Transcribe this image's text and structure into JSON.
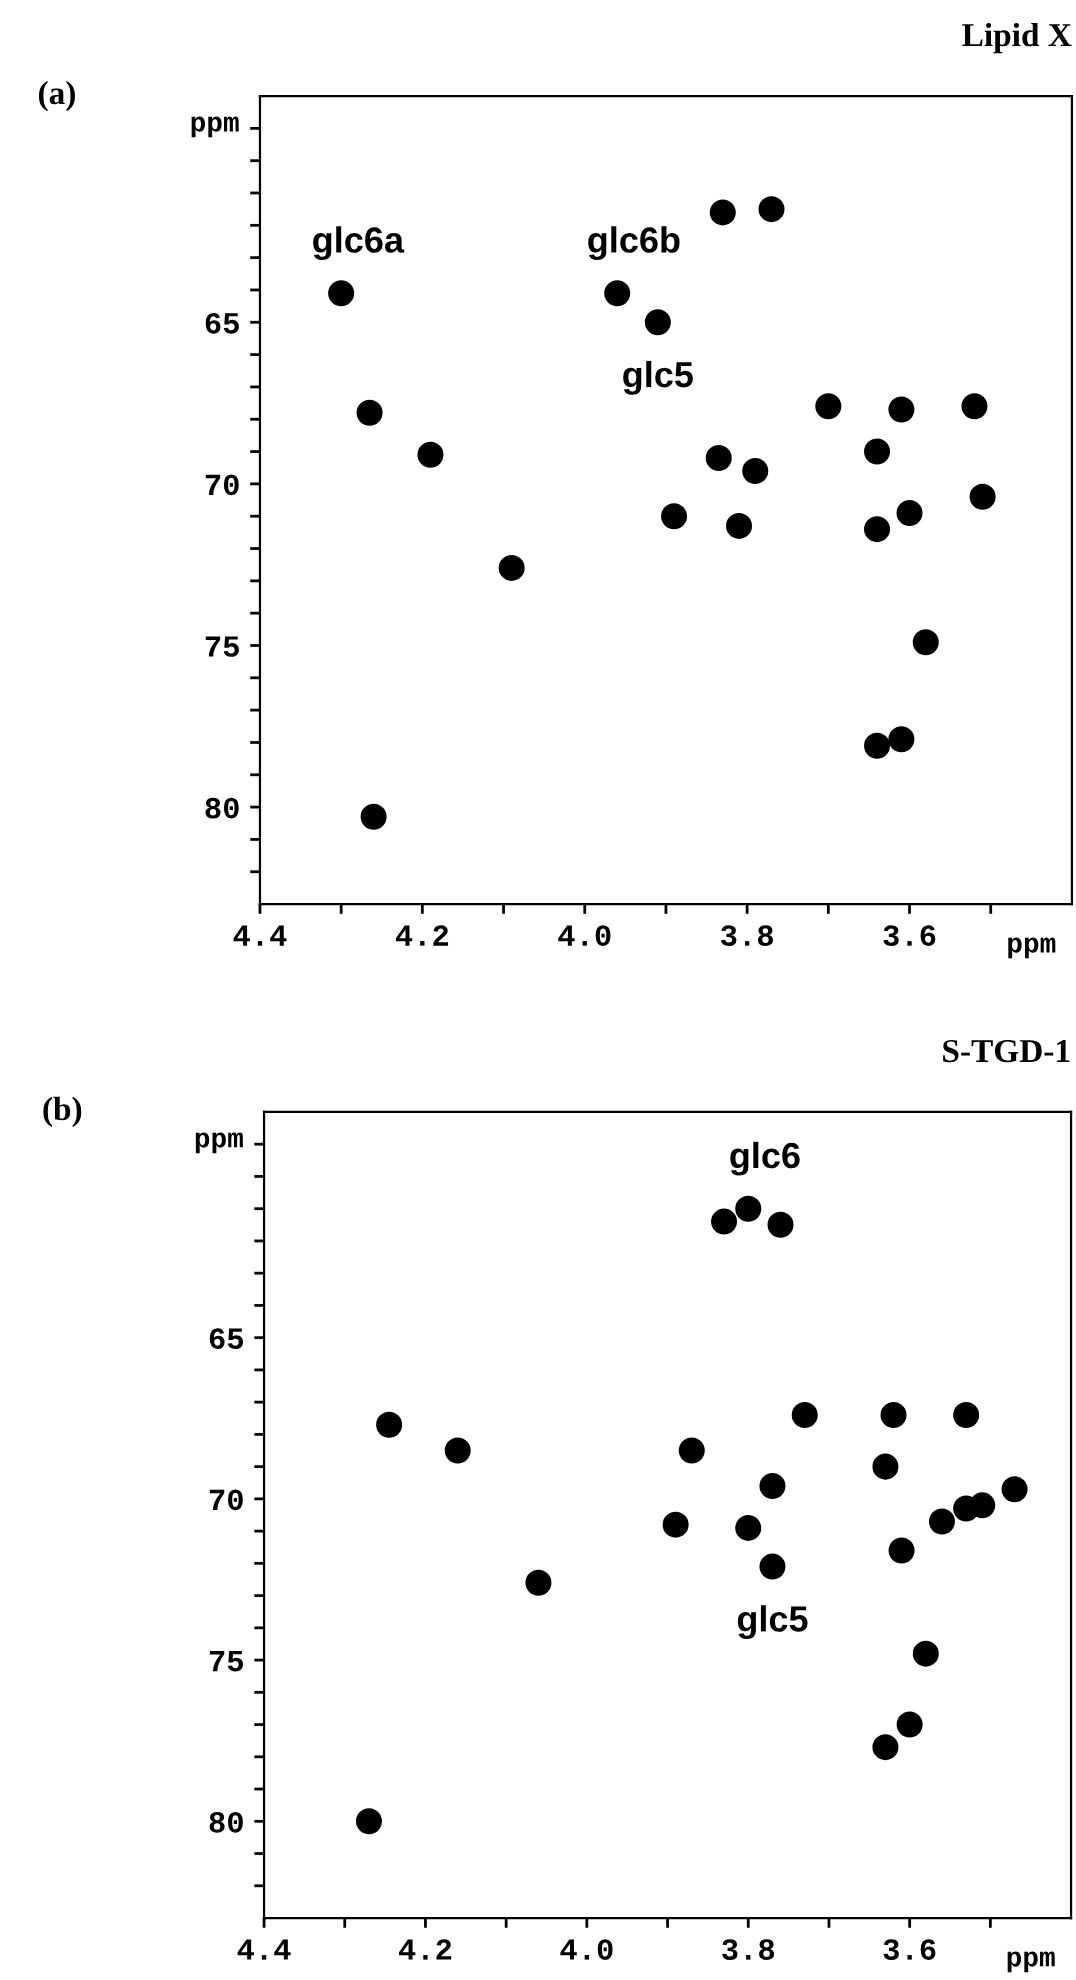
{
  "chart_data": [
    {
      "type": "scatter",
      "title": "Lipid X",
      "xlabel": "ppm",
      "ylabel": "ppm",
      "marker": "circle",
      "grid": false,
      "legend": false,
      "annotations": [
        "(a)",
        {
          "text": "glc6a",
          "x": 4.3,
          "y": 64.1
        },
        {
          "text": "glc6b",
          "x": 3.96,
          "y": 64.1
        },
        {
          "text": "glc5",
          "x": 3.91,
          "y": 65.0
        }
      ],
      "xlim": [
        4.4,
        3.4
      ],
      "ylim": [
        83,
        58
      ],
      "xticks": [
        {
          "value": 4.4,
          "label": "4.4"
        },
        {
          "value": 4.3,
          "label": null
        },
        {
          "value": 4.2,
          "label": "4.2"
        },
        {
          "value": 4.1,
          "label": null
        },
        {
          "value": 4.0,
          "label": "4.0"
        },
        {
          "value": 3.9,
          "label": null
        },
        {
          "value": 3.8,
          "label": "3.8"
        },
        {
          "value": 3.7,
          "label": null
        },
        {
          "value": 3.6,
          "label": "3.6"
        },
        {
          "value": 3.5,
          "label": null
        }
      ],
      "yticks": [
        {
          "value": 59,
          "label": null
        },
        {
          "value": 60,
          "label": null
        },
        {
          "value": 61,
          "label": null
        },
        {
          "value": 62,
          "label": null
        },
        {
          "value": 63,
          "label": null
        },
        {
          "value": 64,
          "label": null
        },
        65,
        {
          "value": 66,
          "label": null
        },
        {
          "value": 67,
          "label": null
        },
        {
          "value": 68,
          "label": null
        },
        {
          "value": 69,
          "label": null
        },
        70,
        {
          "value": 71,
          "label": null
        },
        {
          "value": 72,
          "label": null
        },
        {
          "value": 73,
          "label": null
        },
        {
          "value": 74,
          "label": null
        },
        75,
        {
          "value": 76,
          "label": null
        },
        {
          "value": 77,
          "label": null
        },
        {
          "value": 78,
          "label": null
        },
        {
          "value": 79,
          "label": null
        },
        80,
        {
          "value": 81,
          "label": null
        },
        {
          "value": 82,
          "label": null
        }
      ],
      "series": [
        {
          "color": "#000000",
          "x": [
            4.3,
            4.265,
            4.19,
            4.09,
            3.96,
            3.91,
            3.83,
            3.77,
            3.835,
            3.79,
            3.89,
            3.81,
            3.7,
            3.61,
            3.52,
            3.64,
            3.64,
            3.6,
            3.51,
            3.58,
            3.64,
            3.61,
            4.26
          ],
          "values": [
            64.1,
            67.8,
            69.1,
            72.6,
            64.1,
            65.0,
            61.6,
            61.5,
            69.2,
            69.6,
            71.0,
            71.3,
            67.6,
            67.7,
            67.6,
            69.0,
            71.4,
            70.9,
            70.4,
            74.9,
            78.1,
            77.9,
            80.3
          ]
        }
      ]
    },
    {
      "type": "scatter",
      "title": "S-TGD-1",
      "xlabel": "ppm",
      "ylabel": "ppm",
      "marker": "circle",
      "grid": false,
      "legend": false,
      "annotations": [
        "(b)",
        {
          "text": "glc6",
          "x": 3.8,
          "y": 61.0
        },
        {
          "text": "glc5",
          "x": 3.77,
          "y": 72.1
        }
      ],
      "xlim": [
        4.4,
        3.4
      ],
      "ylim": [
        83,
        58
      ],
      "xticks": [
        {
          "value": 4.4,
          "label": "4.4"
        },
        {
          "value": 4.3,
          "label": null
        },
        {
          "value": 4.2,
          "label": "4.2"
        },
        {
          "value": 4.1,
          "label": null
        },
        {
          "value": 4.0,
          "label": "4.0"
        },
        {
          "value": 3.9,
          "label": null
        },
        {
          "value": 3.8,
          "label": "3.8"
        },
        {
          "value": 3.7,
          "label": null
        },
        {
          "value": 3.6,
          "label": "3.6"
        },
        {
          "value": 3.5,
          "label": null
        }
      ],
      "yticks": [
        {
          "value": 59,
          "label": null
        },
        {
          "value": 60,
          "label": null
        },
        {
          "value": 61,
          "label": null
        },
        {
          "value": 62,
          "label": null
        },
        {
          "value": 63,
          "label": null
        },
        {
          "value": 64,
          "label": null
        },
        65,
        {
          "value": 66,
          "label": null
        },
        {
          "value": 67,
          "label": null
        },
        {
          "value": 68,
          "label": null
        },
        {
          "value": 69,
          "label": null
        },
        70,
        {
          "value": 71,
          "label": null
        },
        {
          "value": 72,
          "label": null
        },
        {
          "value": 73,
          "label": null
        },
        {
          "value": 74,
          "label": null
        },
        75,
        {
          "value": 76,
          "label": null
        },
        {
          "value": 77,
          "label": null
        },
        {
          "value": 78,
          "label": null
        },
        {
          "value": 79,
          "label": null
        },
        80,
        {
          "value": 81,
          "label": null
        },
        {
          "value": 82,
          "label": null
        }
      ],
      "series": [
        {
          "color": "#000000",
          "x": [
            3.83,
            3.8,
            3.76,
            4.245,
            4.16,
            3.87,
            3.73,
            3.62,
            3.53,
            3.63,
            3.77,
            3.89,
            3.8,
            3.77,
            4.06,
            3.61,
            3.56,
            3.53,
            3.51,
            3.47,
            3.58,
            3.6,
            3.63,
            4.27
          ],
          "values": [
            61.4,
            61.0,
            61.5,
            67.7,
            68.5,
            68.5,
            67.4,
            67.4,
            67.4,
            69.0,
            69.6,
            70.8,
            70.9,
            72.1,
            72.6,
            71.6,
            70.7,
            70.3,
            70.2,
            69.7,
            74.8,
            77.0,
            77.7,
            80.0
          ]
        }
      ]
    }
  ]
}
